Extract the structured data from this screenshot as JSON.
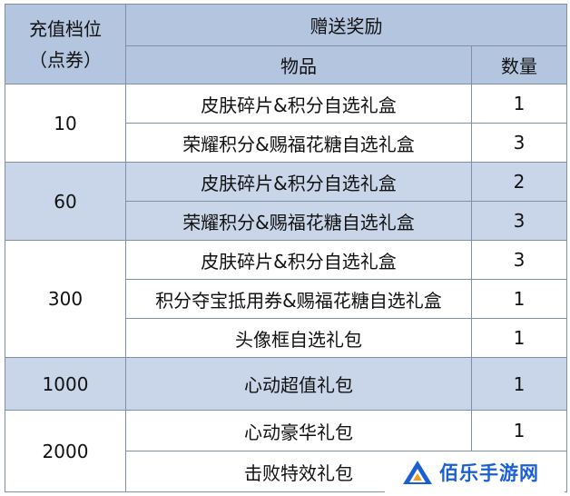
{
  "header": {
    "tier_title": "充值档位",
    "tier_unit": "（点券）",
    "reward_title": "赠送奖励",
    "item_col": "物品",
    "qty_col": "数量"
  },
  "tiers": [
    {
      "tier": "10",
      "rows": [
        {
          "item": "皮肤碎片&积分自选礼盒",
          "qty": "1"
        },
        {
          "item": "荣耀积分&赐福花糖自选礼盒",
          "qty": "3"
        }
      ]
    },
    {
      "tier": "60",
      "rows": [
        {
          "item": "皮肤碎片&积分自选礼盒",
          "qty": "2"
        },
        {
          "item": "荣耀积分&赐福花糖自选礼盒",
          "qty": "3"
        }
      ]
    },
    {
      "tier": "300",
      "rows": [
        {
          "item": "皮肤碎片&积分自选礼盒",
          "qty": "3"
        },
        {
          "item": "积分夺宝抵用券&赐福花糖自选礼盒",
          "qty": "1"
        },
        {
          "item": "头像框自选礼包",
          "qty": "1"
        }
      ]
    },
    {
      "tier": "1000",
      "rows": [
        {
          "item": "心动超值礼包",
          "qty": "1"
        }
      ]
    },
    {
      "tier": "2000",
      "rows": [
        {
          "item": "心动豪华礼包",
          "qty": "1"
        },
        {
          "item": "击败特效礼包",
          "qty": ""
        }
      ]
    }
  ],
  "watermark": {
    "text": "佰乐手游网",
    "logo_icon": "triangle-logo-icon",
    "color": "#1b5fd6"
  },
  "colors": {
    "header_bg": "#b4c5e0",
    "band_bg": "#c9d6ea",
    "border": "#7f8fa8"
  }
}
